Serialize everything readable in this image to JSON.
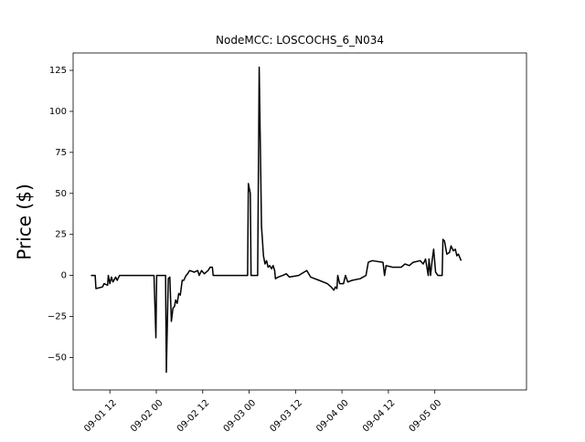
{
  "chart_data": {
    "type": "line",
    "title": "NodeMCC: LOSCOCHS_6_N034",
    "y_label": "Price ($)",
    "x": [
      7.1,
      8.2,
      8.4,
      10.1,
      10.5,
      11.4,
      11.6,
      12,
      12.4,
      12.8,
      13.5,
      13.9,
      14.5,
      23.4,
      23.9,
      24.1,
      26.4,
      26.6,
      27.1,
      27.5,
      27.9,
      28.3,
      28.7,
      29.0,
      29.4,
      29.8,
      30.2,
      30.7,
      31.1,
      31.7,
      32.1,
      32.6,
      33.8,
      34.7,
      35.1,
      35.7,
      36.4,
      37.4,
      37.9,
      38.5,
      38.7,
      47.6,
      47.8,
      48.3,
      48.5,
      50.2,
      50.6,
      51.2,
      51.7,
      52.1,
      52.5,
      52.9,
      53.3,
      53.8,
      54.2,
      54.6,
      54.8,
      55.5,
      56.7,
      57.6,
      58.4,
      60.8,
      62.2,
      62.9,
      63.9,
      66.1,
      68.2,
      69.2,
      69.9,
      70.3,
      70.7,
      70.9,
      71.4,
      72.4,
      72.9,
      73.5,
      74.6,
      76.7,
      78.2,
      78.8,
      79.8,
      82.6,
      83.0,
      83.4,
      85.1,
      87.3,
      88.3,
      89.4,
      90.4,
      92.2,
      93.0,
      93.6,
      94.3,
      94.5,
      94.9,
      95.3,
      95.7,
      96.2,
      96.8,
      97.9,
      98.1,
      98.5,
      99.1,
      99.8,
      100.2,
      100.8,
      101.3,
      101.7,
      102.1,
      102.8
    ],
    "series": [
      {
        "color": "#000000",
        "values": [
          0,
          0,
          -8,
          -7,
          -5,
          -6,
          0,
          -5,
          -1,
          -4,
          -1,
          -3,
          0,
          0,
          -38,
          0,
          0,
          -59,
          -2,
          -1,
          -28,
          -20,
          -19,
          -15,
          -17,
          -11,
          -12,
          -3,
          -3,
          0,
          1,
          3,
          2,
          3,
          0,
          3,
          1,
          3,
          5,
          5,
          0,
          0,
          56,
          50,
          0,
          0,
          127,
          30,
          12,
          7,
          9,
          5,
          6,
          4,
          6,
          3,
          -2,
          -1,
          0,
          1,
          -1,
          0,
          2,
          3,
          -1,
          -3,
          -5,
          -7,
          -9,
          -7,
          -8,
          0,
          -5,
          -5,
          0,
          -4,
          -3,
          -2,
          0,
          8,
          9,
          8,
          0,
          6,
          5,
          5,
          7,
          6,
          8,
          9,
          7,
          10,
          0,
          10,
          0,
          9,
          16,
          2,
          0,
          0,
          22,
          21,
          13,
          14,
          18,
          15,
          16,
          12,
          13,
          9
        ]
      }
    ],
    "xlim": [
      2.5,
      119.7
    ],
    "xticks": [
      {
        "value": 12,
        "label": "09-01 12"
      },
      {
        "value": 24,
        "label": "09-02 00"
      },
      {
        "value": 36,
        "label": "09-02 12"
      },
      {
        "value": 48,
        "label": "09-03 00"
      },
      {
        "value": 60,
        "label": "09-03 12"
      },
      {
        "value": 72,
        "label": "09-04 00"
      },
      {
        "value": 84,
        "label": "09-04 12"
      },
      {
        "value": 96,
        "label": "09-05 00"
      }
    ],
    "ylim": [
      -69.8,
      135.6
    ],
    "yticks": [
      {
        "value": -50,
        "label": "−50"
      },
      {
        "value": -25,
        "label": "−25"
      },
      0,
      25,
      50,
      75,
      100,
      125
    ]
  }
}
